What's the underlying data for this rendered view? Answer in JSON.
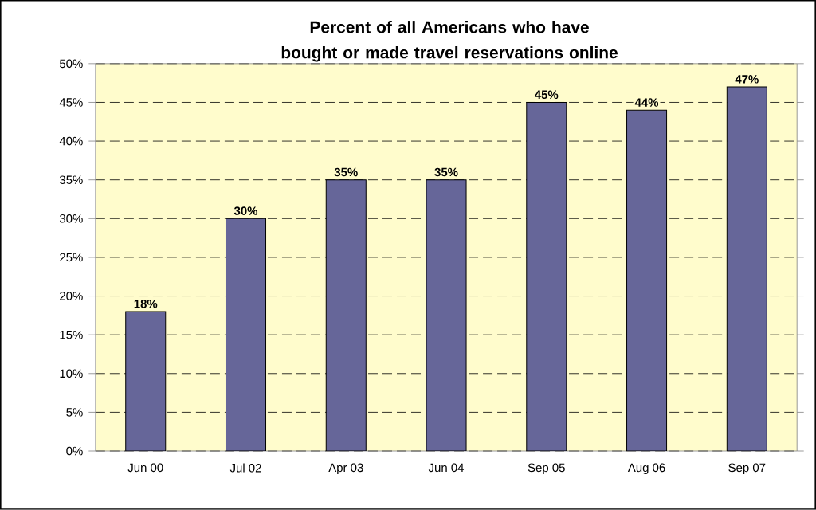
{
  "chart_data": {
    "type": "bar",
    "title": "Percent of all Americans who have bought or made travel reservations online",
    "categories": [
      "Jun 00",
      "Jul 02",
      "Apr 03",
      "Jun 04",
      "Sep 05",
      "Aug 06",
      "Sep 07"
    ],
    "values": [
      18,
      30,
      35,
      35,
      45,
      44,
      47
    ],
    "value_labels": [
      "18%",
      "30%",
      "35%",
      "35%",
      "45%",
      "44%",
      "47%"
    ],
    "color": "#666699",
    "ylim": [
      0,
      50
    ],
    "yticks": [
      {
        "value": 0,
        "label": "0%"
      },
      {
        "value": 5,
        "label": "5%"
      },
      {
        "value": 10,
        "label": "10%"
      },
      {
        "value": 15,
        "label": "15%"
      },
      {
        "value": 20,
        "label": "20%"
      },
      {
        "value": 25,
        "label": "25%"
      },
      {
        "value": 30,
        "label": "30%"
      },
      {
        "value": 35,
        "label": "35%"
      },
      {
        "value": 40,
        "label": "40%"
      },
      {
        "value": 45,
        "label": "45%"
      },
      {
        "value": 50,
        "label": "50%"
      }
    ],
    "grid": "y"
  }
}
